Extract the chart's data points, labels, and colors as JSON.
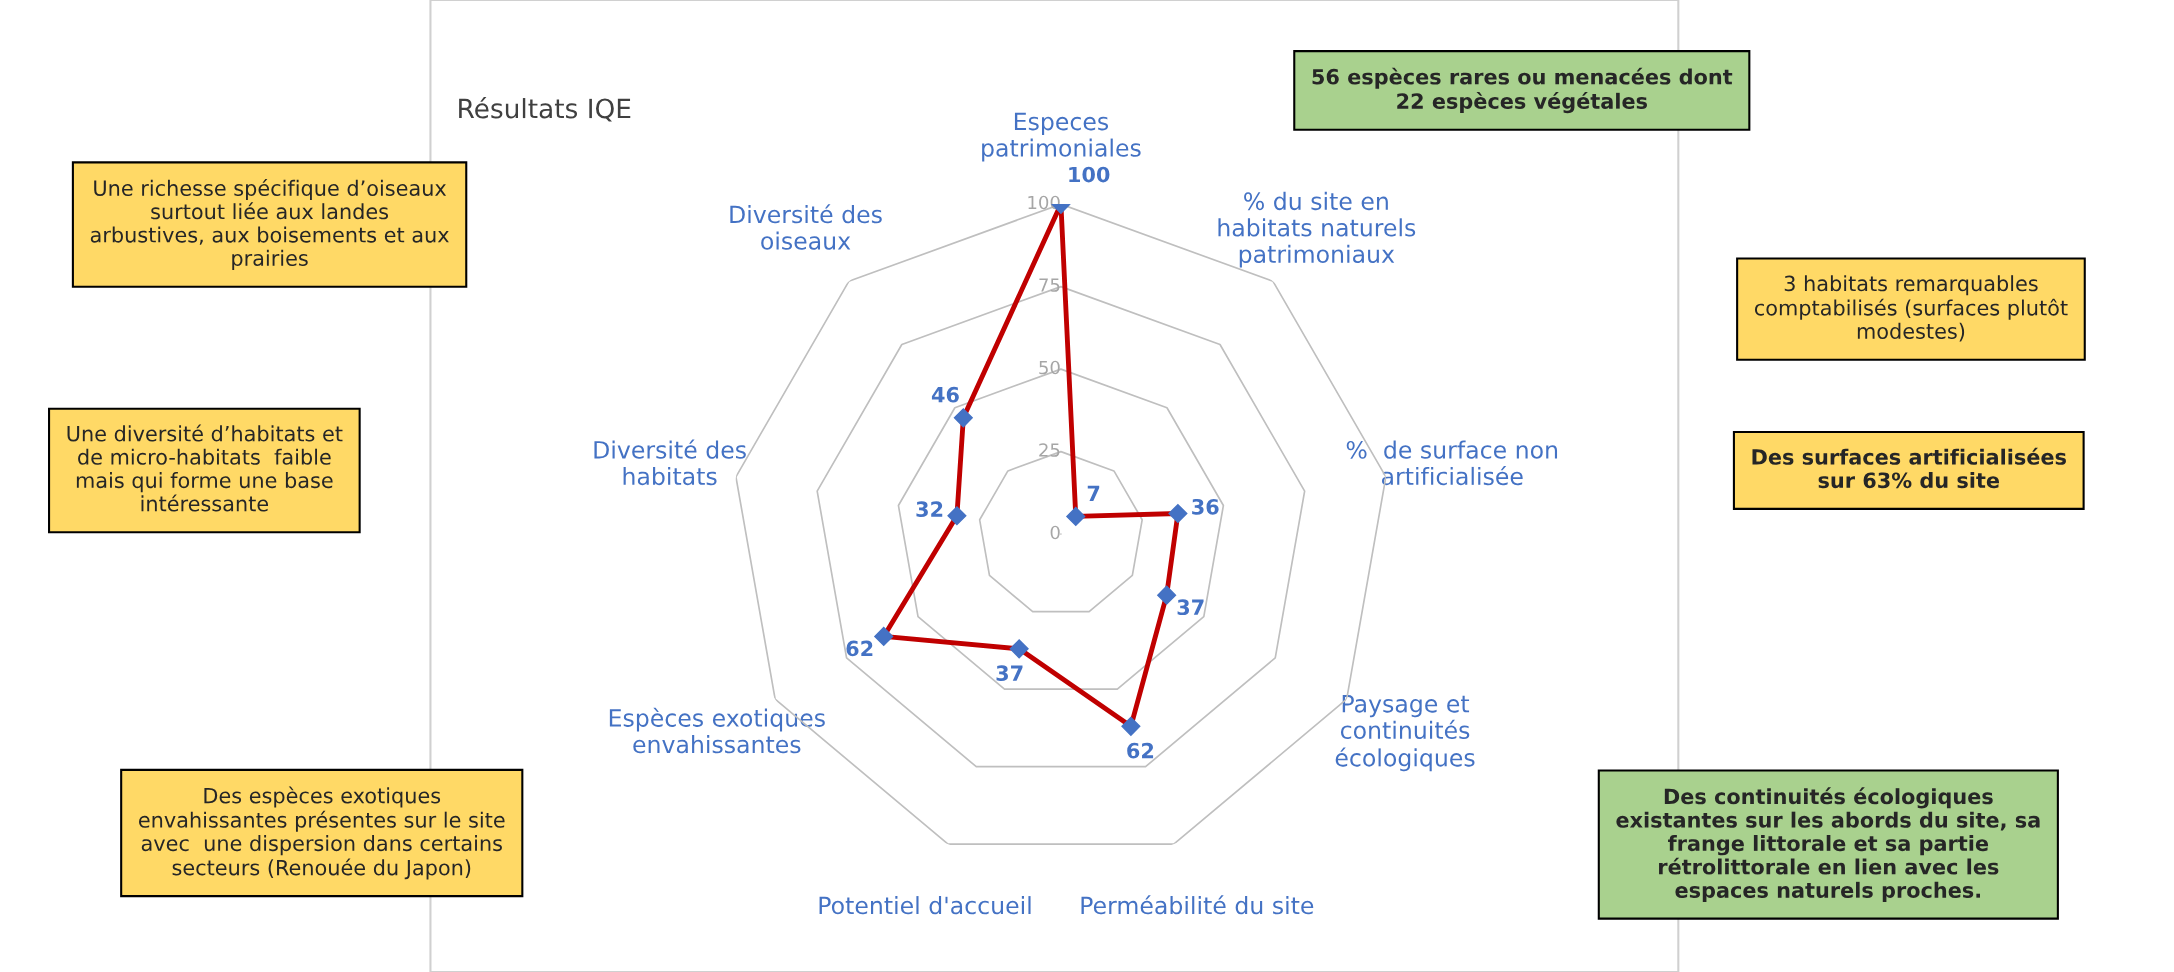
{
  "chart_data": {
    "type": "radar",
    "title": "Résultats IQE",
    "categories": [
      "Especes\npatrimoniales",
      "% du site en\nhabitats naturels\npatrimoniaux",
      "%  de surface non\nartificialisée",
      "Paysage et\ncontinuités\nécologiques",
      "Perméabilité du site",
      "Potentiel d'accueil",
      "Espèces exotiques\nenvahissantes",
      "Diversité des\nhabitats",
      "Diversité des\noiseaux"
    ],
    "series": [
      {
        "color": "#c00000",
        "values": [
          100,
          7,
          36,
          37,
          62,
          37,
          62,
          32,
          46
        ]
      }
    ],
    "ylim": [
      0,
      100
    ],
    "yticks": [
      0,
      25,
      50,
      75,
      100
    ],
    "marker": "diamond",
    "data_labels": true,
    "grid": true,
    "annotations": [
      "Une richesse spécifique d’oiseaux\nsurtout liée aux landes\narbustives, aux boisements et aux\nprairies",
      "Une diversité d’habitats et\nde micro-habitats  faible\nmais qui forme une base\nintéressante",
      "Des espèces exotiques\nenvahissantes présentes sur le site\navec  une dispersion dans certains\nsecteurs (Renouée du Japon)",
      "56 espèces rares ou menacées dont\n22 espèces végétales",
      "3 habitats remarquables\ncomptabilisés (surfaces plutôt\nmodestes)",
      "Des surfaces artificialisées\nsur 63% du site",
      "Des continuités écologiques\nexistantes sur les abords du site, sa\nfrange littorale et sa partie\nrétrolittorale en lien avec les\nespaces naturels proches."
    ]
  }
}
